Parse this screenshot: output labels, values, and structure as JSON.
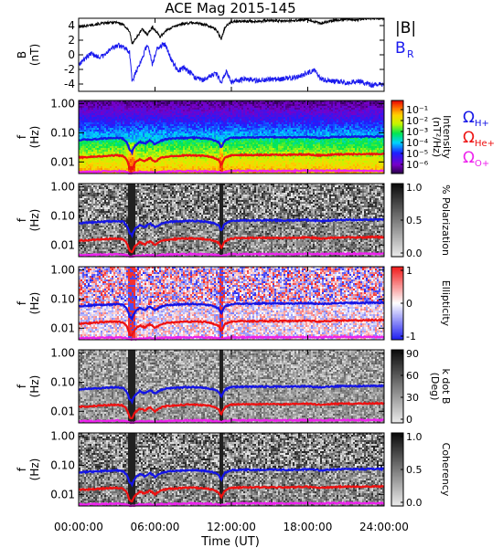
{
  "figure": {
    "title": "ACE Mag 2015-145",
    "xlabel": "Time (UT)",
    "x_ticks": [
      "00:00:00",
      "06:00:00",
      "12:00:00",
      "18:00:00",
      "24:00:00"
    ]
  },
  "colors": {
    "B_total": "#000000",
    "B_R": "#1a1aee",
    "cyclotron_H": "#1414e6",
    "cyclotron_He": "#ee1111",
    "cyclotron_O": "#ee22ee"
  },
  "chart_data": [
    {
      "type": "line",
      "name": "mag-field",
      "ylabel_top": "B",
      "ylabel_bottom": "(nT)",
      "xlim": [
        0,
        24
      ],
      "ylim": [
        -5,
        5
      ],
      "y_ticks": [
        "4",
        "2",
        "0",
        "-2",
        "-4"
      ],
      "series": [
        {
          "name": "|B|",
          "x": [
            0,
            1,
            2,
            3,
            3.6,
            4,
            4.2,
            4.6,
            5,
            5.4,
            5.8,
            6.4,
            7,
            8,
            9,
            10,
            10.8,
            11.2,
            11.5,
            12,
            13,
            14,
            15,
            16,
            17,
            18,
            19,
            20,
            21,
            22,
            23,
            24
          ],
          "values": [
            3.8,
            4.1,
            4.3,
            4.5,
            4.0,
            3.2,
            1.5,
            2.5,
            3.5,
            2.8,
            3.8,
            2.5,
            3.5,
            4.2,
            4.4,
            4.1,
            3.5,
            2.2,
            3.8,
            4.5,
            4.6,
            4.6,
            4.7,
            4.6,
            4.7,
            4.8,
            4.3,
            4.7,
            4.9,
            4.8,
            5.0,
            5.0
          ]
        },
        {
          "name": "B_R",
          "label": "B",
          "label_sub": "R",
          "x": [
            0,
            0.5,
            1,
            1.5,
            2,
            2.5,
            3,
            3.5,
            4,
            4.2,
            4.6,
            5,
            5.4,
            5.8,
            6.2,
            6.8,
            7.3,
            7.8,
            8.3,
            8.8,
            9.2,
            9.8,
            10.3,
            10.8,
            11.2,
            11.6,
            12,
            13,
            14,
            15,
            16,
            17,
            18,
            18.5,
            19,
            20,
            21,
            22,
            23,
            24
          ],
          "values": [
            -1.3,
            -0.5,
            0.2,
            -0.3,
            -0.1,
            0.8,
            1.3,
            1.1,
            0.4,
            -3.6,
            -2.0,
            -0.5,
            1.5,
            -1.3,
            1.0,
            1.5,
            -0.8,
            -2.2,
            -1.8,
            -2.5,
            -3.2,
            -3.4,
            -3.0,
            -2.5,
            -3.8,
            -2.2,
            -3.8,
            -3.3,
            -3.5,
            -3.4,
            -3.3,
            -3.1,
            -2.5,
            -2.0,
            -3.3,
            -3.6,
            -3.8,
            -3.5,
            -4.2,
            -4.0
          ]
        }
      ]
    },
    {
      "type": "heatmap",
      "name": "intensity",
      "ylabel_top": "f",
      "ylabel_bottom": "(Hz)",
      "y_scale": "log",
      "ylim": [
        0.004,
        1.3
      ],
      "y_ticks": [
        "1.00",
        "0.10",
        "0.01"
      ],
      "colorbar": {
        "label_top": "Intensity",
        "label_bottom": "(nT²/Hz)",
        "scale": "log",
        "range": [
          1e-07,
          0.3
        ],
        "ticks": [
          "10⁻¹",
          "10⁻²",
          "10⁻³",
          "10⁻⁴",
          "10⁻⁵",
          "10⁻⁶"
        ],
        "colormap": "rainbow"
      },
      "legend": [
        {
          "label": "Ω",
          "sub": "H+"
        },
        {
          "label": "Ω",
          "sub": "He+"
        },
        {
          "label": "Ω",
          "sub": "O+"
        }
      ]
    },
    {
      "type": "heatmap",
      "name": "polarization",
      "ylabel_top": "f",
      "ylabel_bottom": "(Hz)",
      "y_scale": "log",
      "ylim": [
        0.004,
        1.3
      ],
      "y_ticks": [
        "1.00",
        "0.10",
        "0.01"
      ],
      "colorbar": {
        "label_top": "% Polarization",
        "label_bottom": "",
        "range": [
          0,
          1
        ],
        "ticks": [
          "1.0",
          "0.5",
          "0.0"
        ],
        "colormap": "gray"
      }
    },
    {
      "type": "heatmap",
      "name": "ellipticity",
      "ylabel_top": "f",
      "ylabel_bottom": "(Hz)",
      "y_scale": "log",
      "ylim": [
        0.004,
        1.3
      ],
      "y_ticks": [
        "1.00",
        "0.10",
        "0.01"
      ],
      "colorbar": {
        "label_top": "Ellipticity",
        "label_bottom": "",
        "range": [
          -1,
          1
        ],
        "ticks": [
          "1",
          "0",
          "-1"
        ],
        "colormap": "blue-white-red"
      }
    },
    {
      "type": "heatmap",
      "name": "kdotb",
      "ylabel_top": "f",
      "ylabel_bottom": "(Hz)",
      "y_scale": "log",
      "ylim": [
        0.004,
        1.3
      ],
      "y_ticks": [
        "1.00",
        "0.10",
        "0.01"
      ],
      "colorbar": {
        "label_top": "k dot B",
        "label_bottom": "(Deg)",
        "range": [
          0,
          90
        ],
        "ticks": [
          "90",
          "60",
          "30",
          "0"
        ],
        "colormap": "gray"
      }
    },
    {
      "type": "heatmap",
      "name": "coherency",
      "ylabel_top": "f",
      "ylabel_bottom": "(Hz)",
      "y_scale": "log",
      "ylim": [
        0.004,
        1.3
      ],
      "y_ticks": [
        "1.00",
        "0.10",
        "0.01"
      ],
      "colorbar": {
        "label_top": "Coherency",
        "label_bottom": "",
        "range": [
          0,
          1
        ],
        "ticks": [
          "1.0",
          "0.5",
          "0.0"
        ],
        "colormap": "gray"
      }
    }
  ],
  "cyclotron_lines": [
    {
      "name": "H+",
      "x": [
        0,
        1,
        2,
        3,
        3.5,
        3.8,
        4.0,
        4.2,
        4.4,
        4.8,
        5.2,
        5.6,
        6,
        6.5,
        7,
        8,
        9,
        10,
        10.5,
        11,
        11.2,
        11.5,
        12,
        13,
        14,
        15,
        16,
        17,
        18,
        19,
        20,
        21,
        22,
        23,
        24
      ],
      "values": [
        0.057,
        0.06,
        0.064,
        0.067,
        0.063,
        0.045,
        0.025,
        0.022,
        0.035,
        0.05,
        0.042,
        0.055,
        0.04,
        0.055,
        0.062,
        0.066,
        0.068,
        0.064,
        0.058,
        0.048,
        0.03,
        0.055,
        0.068,
        0.07,
        0.07,
        0.071,
        0.07,
        0.071,
        0.073,
        0.067,
        0.072,
        0.074,
        0.073,
        0.075,
        0.075
      ]
    },
    {
      "name": "He+",
      "x": [
        0,
        1,
        2,
        3,
        3.5,
        3.8,
        4.0,
        4.2,
        4.4,
        4.8,
        5.2,
        5.6,
        6,
        6.5,
        7,
        8,
        9,
        10,
        10.5,
        11,
        11.2,
        11.5,
        12,
        13,
        14,
        15,
        16,
        17,
        18,
        19,
        20,
        21,
        22,
        23,
        24
      ],
      "values": [
        0.0143,
        0.015,
        0.016,
        0.0168,
        0.0158,
        0.0112,
        0.0062,
        0.0055,
        0.0088,
        0.0125,
        0.0105,
        0.0138,
        0.01,
        0.0138,
        0.0155,
        0.0165,
        0.017,
        0.016,
        0.0145,
        0.012,
        0.0075,
        0.0138,
        0.017,
        0.0175,
        0.0175,
        0.0178,
        0.0175,
        0.0178,
        0.0183,
        0.0168,
        0.018,
        0.0185,
        0.0183,
        0.0188,
        0.0188
      ]
    },
    {
      "name": "O+",
      "x": [
        0,
        1,
        2,
        3,
        3.5,
        3.8,
        4.0,
        4.2,
        4.4,
        4.8,
        5.2,
        5.6,
        6,
        6.5,
        7,
        8,
        9,
        10,
        10.5,
        11,
        11.2,
        11.5,
        12,
        13,
        14,
        15,
        16,
        17,
        18,
        19,
        20,
        21,
        22,
        23,
        24
      ],
      "values": [
        0.0045,
        0.0046,
        0.0047,
        0.0048,
        0.0047,
        0.0044,
        0.0041,
        0.004,
        0.0042,
        0.0045,
        0.0044,
        0.0046,
        0.0043,
        0.0046,
        0.0047,
        0.0048,
        0.0049,
        0.0048,
        0.0047,
        0.0045,
        0.0042,
        0.0046,
        0.0049,
        0.0049,
        0.0049,
        0.0049,
        0.0049,
        0.0049,
        0.005,
        0.0049,
        0.005,
        0.005,
        0.005,
        0.005,
        0.005
      ]
    }
  ]
}
